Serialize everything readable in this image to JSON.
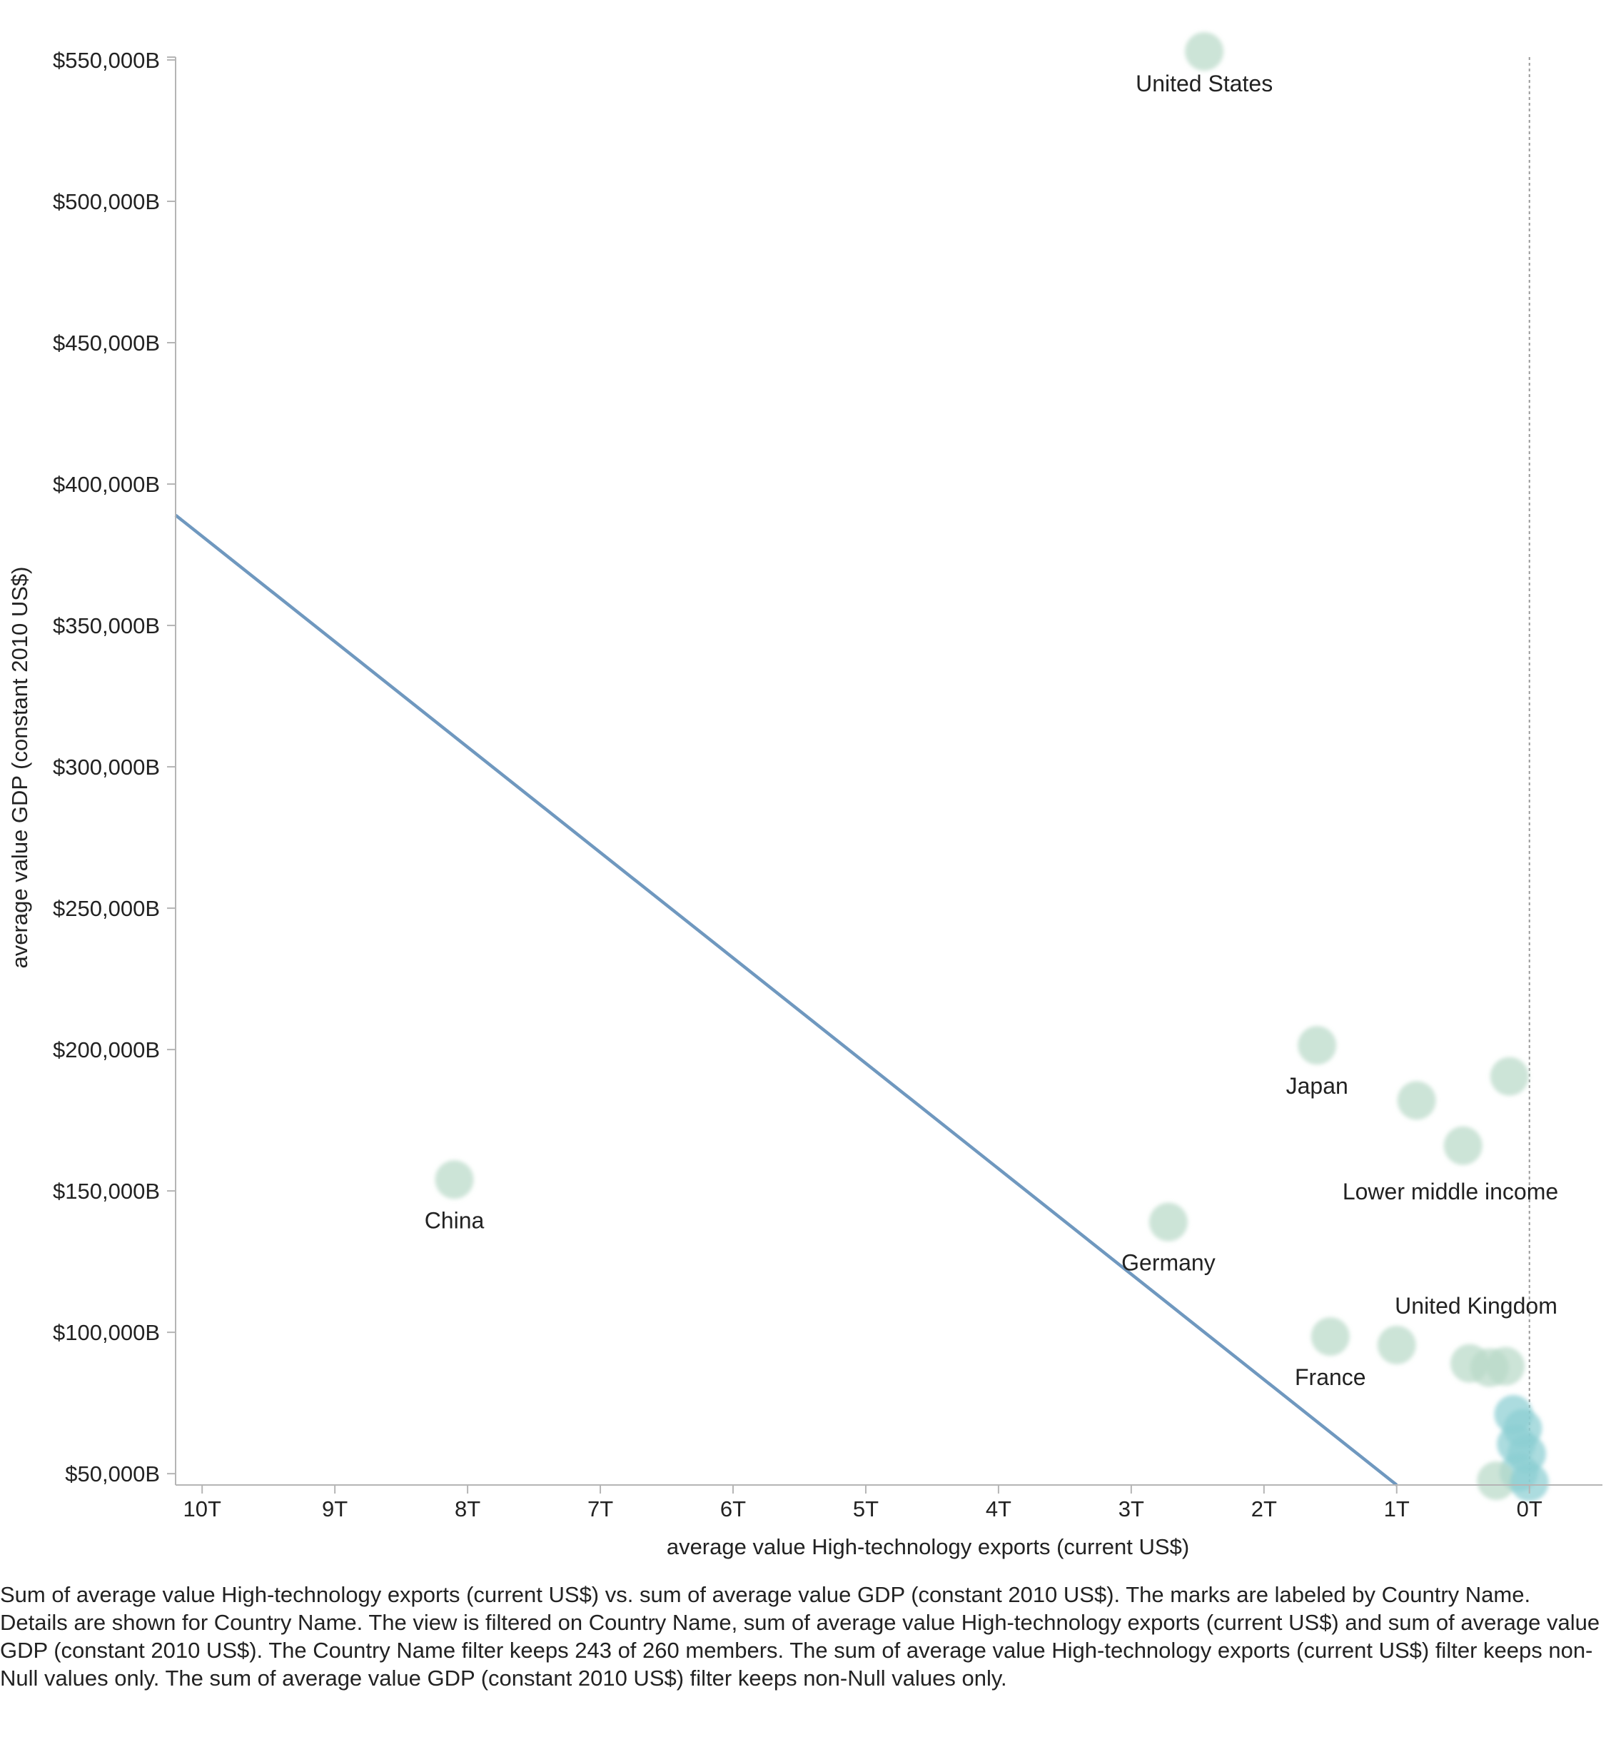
{
  "chart_data": {
    "type": "scatter",
    "xlabel": "average value High-technology exports (current US$)",
    "ylabel": "average value GDP (constant 2010 US$)",
    "x_reversed": true,
    "xlim": [
      10.2,
      -0.55
    ],
    "ylim": [
      46000,
      551000
    ],
    "x_ticks": [
      {
        "value": 10,
        "label": "10T"
      },
      {
        "value": 9,
        "label": "9T"
      },
      {
        "value": 8,
        "label": "8T"
      },
      {
        "value": 7,
        "label": "7T"
      },
      {
        "value": 6,
        "label": "6T"
      },
      {
        "value": 5,
        "label": "5T"
      },
      {
        "value": 4,
        "label": "4T"
      },
      {
        "value": 3,
        "label": "3T"
      },
      {
        "value": 2,
        "label": "2T"
      },
      {
        "value": 1,
        "label": "1T"
      },
      {
        "value": 0,
        "label": "0T"
      }
    ],
    "y_ticks": [
      {
        "value": 550000,
        "label": "$550,000B"
      },
      {
        "value": 500000,
        "label": "$500,000B"
      },
      {
        "value": 450000,
        "label": "$450,000B"
      },
      {
        "value": 400000,
        "label": "$400,000B"
      },
      {
        "value": 350000,
        "label": "$350,000B"
      },
      {
        "value": 300000,
        "label": "$300,000B"
      },
      {
        "value": 250000,
        "label": "$250,000B"
      },
      {
        "value": 200000,
        "label": "$200,000B"
      },
      {
        "value": 150000,
        "label": "$150,000B"
      },
      {
        "value": 100000,
        "label": "$100,000B"
      },
      {
        "value": 50000,
        "label": "$50,000B"
      }
    ],
    "zero_reference_line": {
      "x": 0
    },
    "trend_line": {
      "from": {
        "x": 10.2,
        "y": 389000
      },
      "to": {
        "x": 1.0,
        "y": 46000
      }
    },
    "points": [
      {
        "x": 2.45,
        "y": 553000,
        "label": "United States"
      },
      {
        "x": 1.6,
        "y": 201500,
        "label": "Japan"
      },
      {
        "x": 0.15,
        "y": 190500,
        "label": ""
      },
      {
        "x": 0.85,
        "y": 182000,
        "label": ""
      },
      {
        "x": 0.5,
        "y": 166000,
        "label": "Lower middle income"
      },
      {
        "x": 8.1,
        "y": 154000,
        "label": "China"
      },
      {
        "x": 2.72,
        "y": 139000,
        "label": "Germany"
      },
      {
        "x": 1.5,
        "y": 98500,
        "label": "France"
      },
      {
        "x": 1.0,
        "y": 95500,
        "label": "United Kingdom"
      },
      {
        "x": 0.45,
        "y": 89000,
        "label": ""
      },
      {
        "x": 0.3,
        "y": 87500,
        "label": ""
      },
      {
        "x": 0.18,
        "y": 88000,
        "label": ""
      },
      {
        "x": 0.12,
        "y": 71000,
        "label": ""
      },
      {
        "x": 0.05,
        "y": 66000,
        "label": ""
      },
      {
        "x": 0.1,
        "y": 60500,
        "label": ""
      },
      {
        "x": 0.02,
        "y": 57000,
        "label": ""
      },
      {
        "x": 0.08,
        "y": 50500,
        "label": ""
      },
      {
        "x": 0.25,
        "y": 47500,
        "label": ""
      },
      {
        "x": 0.0,
        "y": 47000,
        "label": ""
      }
    ]
  },
  "caption": "Sum of average value High-technology exports (current US$) vs. sum of average value GDP (constant 2010 US$).  The marks are labeled by Country Name.  Details are shown for Country Name. The view is filtered on Country Name, sum of average value High-technology exports (current US$) and sum of average value GDP (constant 2010 US$). The Country Name filter keeps 243 of 260 members. The sum of average value High-technology exports (current US$) filter keeps non-Null values only. The sum of average value GDP (constant 2010 US$) filter keeps non-Null values only.",
  "colors": {
    "point": "#b9d9c8",
    "point_dense": "#8ccfd3",
    "trend_line": "#6f98bf",
    "axis": "#b5b5b5",
    "zero_line": "#9a9a9a"
  }
}
